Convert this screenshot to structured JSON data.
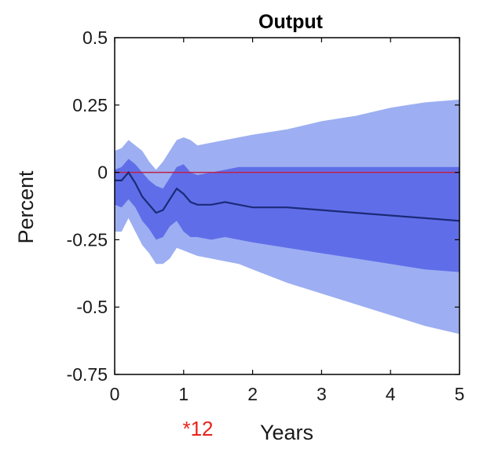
{
  "chart_data": {
    "type": "area",
    "title": "Output",
    "xlabel": "Years",
    "ylabel": "Percent",
    "xlim": [
      0,
      5
    ],
    "ylim": [
      -0.75,
      0.5
    ],
    "xticks": [
      0,
      1,
      2,
      3,
      4,
      5
    ],
    "xtick_labels": [
      "0",
      "1",
      "2",
      "3",
      "4",
      "5"
    ],
    "yticks": [
      0.5,
      0.25,
      0,
      -0.25,
      -0.5,
      -0.75
    ],
    "ytick_labels": [
      "0.5",
      "0.25",
      "0",
      "-0.25",
      "-0.5",
      "-0.75"
    ],
    "grid": false,
    "annotation": {
      "text": "*12",
      "color": "#e8231c"
    },
    "zero_line_color": "#c0204a",
    "colors": {
      "outer_band": "#9daff2",
      "inner_band": "#5f6ee8",
      "median": "#1c2a78"
    },
    "x": [
      0,
      0.1,
      0.2,
      0.3,
      0.4,
      0.5,
      0.6,
      0.7,
      0.8,
      0.9,
      1.0,
      1.1,
      1.2,
      1.4,
      1.6,
      1.8,
      2.0,
      2.5,
      3.0,
      3.5,
      4.0,
      4.5,
      5.0
    ],
    "series": [
      {
        "name": "",
        "role": "outer_upper",
        "values": [
          0.08,
          0.09,
          0.12,
          0.1,
          0.08,
          0.04,
          0.01,
          0.04,
          0.08,
          0.12,
          0.13,
          0.12,
          0.1,
          0.11,
          0.12,
          0.13,
          0.14,
          0.16,
          0.19,
          0.21,
          0.24,
          0.26,
          0.27
        ]
      },
      {
        "name": "",
        "role": "inner_upper",
        "values": [
          0.01,
          0.02,
          0.05,
          0.03,
          0.0,
          -0.03,
          -0.05,
          -0.06,
          -0.02,
          0.02,
          0.03,
          0.0,
          -0.01,
          0.0,
          0.01,
          0.02,
          0.02,
          0.02,
          0.02,
          0.02,
          0.02,
          0.02,
          0.02
        ]
      },
      {
        "name": "",
        "role": "median",
        "values": [
          -0.03,
          -0.03,
          0.0,
          -0.04,
          -0.09,
          -0.12,
          -0.15,
          -0.14,
          -0.1,
          -0.06,
          -0.08,
          -0.11,
          -0.12,
          -0.12,
          -0.11,
          -0.12,
          -0.13,
          -0.13,
          -0.14,
          -0.15,
          -0.16,
          -0.17,
          -0.18
        ]
      },
      {
        "name": "",
        "role": "inner_lower",
        "values": [
          -0.12,
          -0.13,
          -0.1,
          -0.13,
          -0.18,
          -0.21,
          -0.25,
          -0.24,
          -0.2,
          -0.18,
          -0.22,
          -0.24,
          -0.24,
          -0.25,
          -0.24,
          -0.25,
          -0.26,
          -0.28,
          -0.3,
          -0.32,
          -0.34,
          -0.36,
          -0.37
        ]
      },
      {
        "name": "",
        "role": "outer_lower",
        "values": [
          -0.22,
          -0.22,
          -0.17,
          -0.22,
          -0.27,
          -0.3,
          -0.34,
          -0.34,
          -0.32,
          -0.28,
          -0.29,
          -0.3,
          -0.31,
          -0.32,
          -0.33,
          -0.34,
          -0.36,
          -0.41,
          -0.45,
          -0.49,
          -0.53,
          -0.57,
          -0.6
        ]
      }
    ]
  }
}
